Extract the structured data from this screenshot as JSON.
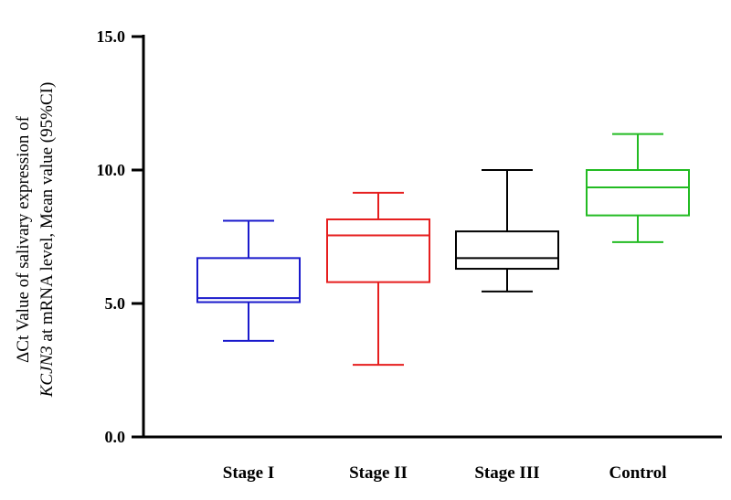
{
  "chart_data": {
    "type": "box",
    "ylabel_line1": "ΔCt Value of salivary expression of",
    "ylabel_line2_italic": "KCJN3",
    "ylabel_line2_rest": " at mRNA level, Mean value  (95%CI)",
    "ylim": [
      0,
      15
    ],
    "yticks": [
      0,
      5,
      10,
      15
    ],
    "ytick_labels": [
      "0.0",
      "5.0",
      "10.0",
      "15.0"
    ],
    "categories": [
      "Stage I",
      "Stage II",
      "Stage III",
      "Control"
    ],
    "colors": [
      "#1a1acc",
      "#e61e1e",
      "#000000",
      "#22bb22"
    ],
    "boxes": [
      {
        "min": 3.6,
        "q1": 5.05,
        "median": 5.2,
        "q3": 6.7,
        "max": 8.1
      },
      {
        "min": 2.7,
        "q1": 5.8,
        "median": 7.55,
        "q3": 8.15,
        "max": 9.15
      },
      {
        "min": 5.45,
        "q1": 6.3,
        "median": 6.7,
        "q3": 7.7,
        "max": 10.0
      },
      {
        "min": 7.3,
        "q1": 8.3,
        "median": 9.35,
        "q3": 10.0,
        "max": 11.35
      }
    ],
    "grid": false,
    "legend": "none"
  }
}
